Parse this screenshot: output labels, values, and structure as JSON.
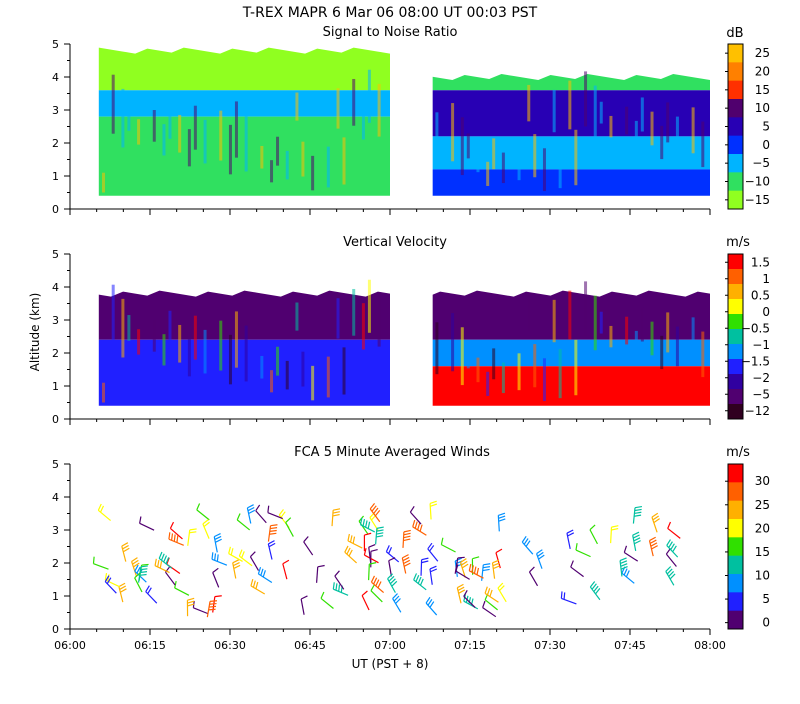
{
  "figure": {
    "main_title": "T-REX   MAPR   6 Mar 06   08:00 UT   00:03   PST",
    "x_axis_label": "UT  (PST + 8)",
    "x_ticks": [
      "06:00",
      "06:15",
      "06:30",
      "06:45",
      "07:00",
      "07:15",
      "07:30",
      "07:45",
      "08:00"
    ],
    "y_ticks": [
      "0",
      "1",
      "2",
      "3",
      "4",
      "5"
    ],
    "y_axis_label": "Altitude (km)"
  },
  "chart_data": [
    {
      "type": "heatmap",
      "title": "Signal to Noise Ratio",
      "xlabel": "UT  (PST + 8)",
      "ylabel": "Altitude (km)",
      "xlim": [
        "06:00",
        "08:00"
      ],
      "ylim": [
        0,
        5
      ],
      "data_gap": [
        "07:00",
        "07:08"
      ],
      "colorbar": {
        "unit": "dB",
        "levels": [
          "25",
          "20",
          "15",
          "10",
          "5",
          "0",
          "−5",
          "−10",
          "−15"
        ],
        "colors": [
          "#ffc000",
          "#ff8000",
          "#ff3000",
          "#50006e",
          "#2800b4",
          "#0030ff",
          "#00b4ff",
          "#30e060",
          "#90ff20"
        ]
      },
      "regions": [
        {
          "t": [
            6.09,
            7.0
          ],
          "alt": [
            3.6,
            4.8
          ],
          "value": "−15 to −10",
          "color": "#90ff20"
        },
        {
          "t": [
            6.09,
            7.0
          ],
          "alt": [
            2.8,
            3.6
          ],
          "value": "−5",
          "color": "#00b4ff"
        },
        {
          "t": [
            6.09,
            7.0
          ],
          "alt": [
            0.4,
            2.8
          ],
          "value": "−10 to −5",
          "color": "#30e060"
        },
        {
          "t": [
            7.08,
            8.0
          ],
          "alt": [
            3.6,
            4.0
          ],
          "value": "−10",
          "color": "#30e060"
        },
        {
          "t": [
            7.08,
            8.0
          ],
          "alt": [
            2.2,
            3.6
          ],
          "value": "0 to 10",
          "color": "#2800b4"
        },
        {
          "t": [
            7.08,
            8.0
          ],
          "alt": [
            1.2,
            2.2
          ],
          "value": "−5",
          "color": "#00b4ff"
        },
        {
          "t": [
            7.08,
            8.0
          ],
          "alt": [
            0.4,
            1.2
          ],
          "value": "0",
          "color": "#0030ff"
        }
      ]
    },
    {
      "type": "heatmap",
      "title": "Vertical Velocity",
      "xlabel": "UT  (PST + 8)",
      "ylabel": "Altitude (km)",
      "xlim": [
        "06:00",
        "08:00"
      ],
      "ylim": [
        0,
        5
      ],
      "data_gap": [
        "07:00",
        "07:08"
      ],
      "colorbar": {
        "unit": "m/s",
        "levels": [
          "1.5",
          "1",
          "0.5",
          "0",
          "−0.5",
          "−1",
          "−1.5",
          "−2",
          "−5",
          "−12"
        ],
        "colors": [
          "#ff0000",
          "#ff6000",
          "#ffb000",
          "#ffff00",
          "#30e000",
          "#00c0a0",
          "#0090ff",
          "#2020ff",
          "#3000a0",
          "#500070",
          "#300020"
        ]
      },
      "regions": [
        {
          "t": [
            6.09,
            7.0
          ],
          "alt": [
            2.4,
            3.8
          ],
          "value": "−5",
          "color": "#500070"
        },
        {
          "t": [
            6.09,
            7.0
          ],
          "alt": [
            0.4,
            2.4
          ],
          "value": "mixed −2 to 1.5",
          "color": "#2020ff"
        },
        {
          "t": [
            7.08,
            8.0
          ],
          "alt": [
            2.4,
            3.8
          ],
          "value": "−5",
          "color": "#500070"
        },
        {
          "t": [
            7.08,
            8.0
          ],
          "alt": [
            1.6,
            2.4
          ],
          "value": "−1.5 to −0.5",
          "color": "#0090ff"
        },
        {
          "t": [
            7.08,
            8.0
          ],
          "alt": [
            0.4,
            1.6
          ],
          "value": "1 to 1.5",
          "color": "#ff0000"
        }
      ]
    },
    {
      "type": "scatter",
      "title": "FCA 5 Minute Averaged Winds",
      "xlabel": "UT  (PST + 8)",
      "ylabel": "Altitude (km)",
      "xlim": [
        "06:00",
        "08:00"
      ],
      "ylim": [
        0,
        5
      ],
      "marker": "wind barb",
      "colorbar": {
        "unit": "m/s",
        "levels": [
          "30",
          "25",
          "20",
          "15",
          "10",
          "5",
          "0"
        ],
        "colors": [
          "#ff0000",
          "#ff6000",
          "#ffb000",
          "#ffff00",
          "#30e000",
          "#00c0a0",
          "#0090ff",
          "#2020ff",
          "#500070"
        ]
      },
      "points_summary": "wind barbs from 06:07 to 07:58 between about 0.4 and 3.5 km; speeds mostly 10–25 m/s, strongest (25–30 m/s) near 2.3–2.8 km around 06:07 and 07:45"
    }
  ]
}
